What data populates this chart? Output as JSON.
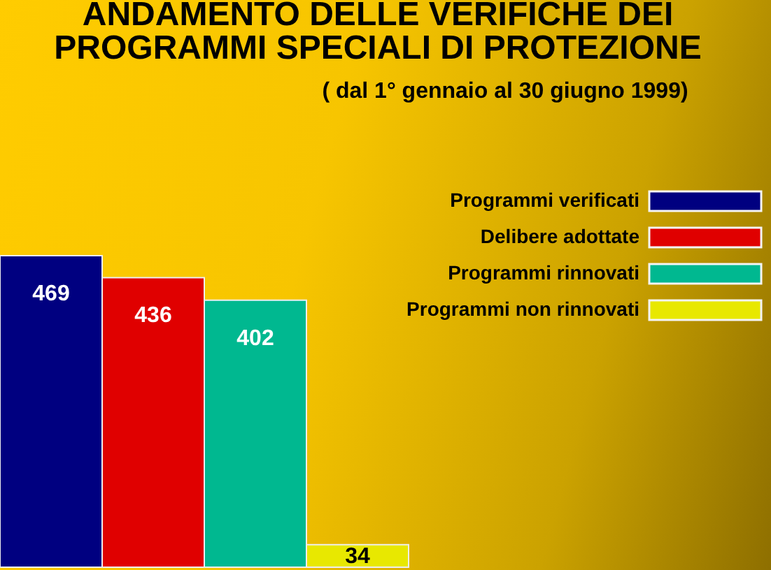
{
  "chart_data": {
    "type": "bar",
    "title": "ANDAMENTO DELLE VERIFICHE DEI PROGRAMMI SPECIALI DI PROTEZIONE",
    "subtitle": "( dal 1° gennaio al 30 giugno 1999)",
    "categories": [
      null
    ],
    "series": [
      {
        "name": "Programmi verificati",
        "color": "#000080",
        "values": [
          469
        ]
      },
      {
        "name": "Delibere adottate",
        "color": "#e00000",
        "values": [
          436
        ]
      },
      {
        "name": "Programmi rinnovati",
        "color": "#00b890",
        "values": [
          402
        ]
      },
      {
        "name": "Programmi non rinnovati",
        "color": "#e8e800",
        "values": [
          34
        ]
      }
    ],
    "data_labels": true,
    "legend": "top right",
    "tick_labels": false
  }
}
